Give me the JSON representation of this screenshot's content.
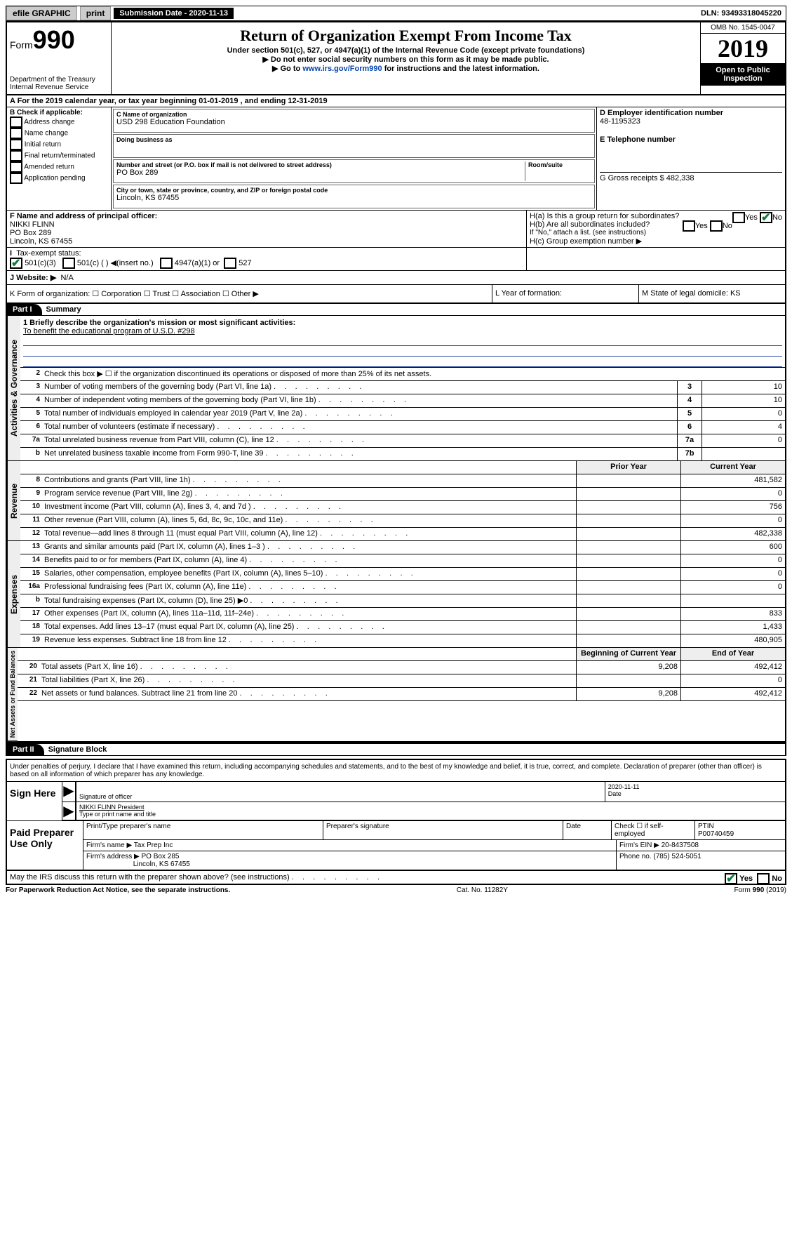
{
  "top_bar": {
    "efile": "efile GRAPHIC",
    "print": "print",
    "submission_date_label": "Submission Date - 2020-11-13",
    "dln": "DLN: 93493318045220"
  },
  "header": {
    "form_word": "Form",
    "form_num": "990",
    "dept": "Department of the Treasury\nInternal Revenue Service",
    "title": "Return of Organization Exempt From Income Tax",
    "sub1": "Under section 501(c), 527, or 4947(a)(1) of the Internal Revenue Code (except private foundations)",
    "sub2": "▶ Do not enter social security numbers on this form as it may be made public.",
    "sub3_pre": "▶ Go to ",
    "sub3_link": "www.irs.gov/Form990",
    "sub3_post": " for instructions and the latest information.",
    "omb": "OMB No. 1545-0047",
    "year": "2019",
    "open": "Open to Public Inspection"
  },
  "row_a": "A   For the 2019 calendar year, or tax year beginning 01-01-2019     , and ending 12-31-2019",
  "box_b": {
    "label": "B Check if applicable:",
    "opts": [
      "Address change",
      "Name change",
      "Initial return",
      "Final return/terminated",
      "Amended return",
      "Application pending"
    ]
  },
  "box_c": {
    "name_lbl": "C Name of organization",
    "name": "USD 298 Education Foundation",
    "dba_lbl": "Doing business as",
    "addr_lbl": "Number and street (or P.O. box if mail is not delivered to street address)",
    "room_lbl": "Room/suite",
    "addr": "PO Box 289",
    "city_lbl": "City or town, state or province, country, and ZIP or foreign postal code",
    "city": "Lincoln, KS  67455"
  },
  "box_d": {
    "ein_lbl": "D Employer identification number",
    "ein": "48-1195323",
    "tel_lbl": "E Telephone number",
    "gross_lbl": "G Gross receipts $ 482,338"
  },
  "box_f": {
    "lbl": "F  Name and address of principal officer:",
    "name": "NIKKI FLINN",
    "addr1": "PO Box 289",
    "addr2": "Lincoln, KS  67455"
  },
  "box_h": {
    "a": "H(a)  Is this a group return for subordinates?",
    "b": "H(b)  Are all subordinates included?",
    "b_note": "If \"No,\" attach a list. (see instructions)",
    "c": "H(c)  Group exemption number ▶",
    "yes": "Yes",
    "no": "No"
  },
  "tax_status": {
    "lbl": "Tax-exempt status:",
    "o1": "501(c)(3)",
    "o2": "501(c) (   ) ◀(insert no.)",
    "o3": "4947(a)(1) or",
    "o4": "527"
  },
  "website": {
    "lbl": "J   Website: ▶",
    "val": "N/A"
  },
  "row_k": {
    "k": "K Form of organization:    ☐ Corporation  ☐ Trust  ☐ Association  ☐ Other ▶",
    "l": "L Year of formation:",
    "m": "M State of legal domicile: KS"
  },
  "part1": {
    "tab": "Part I",
    "title": "Summary"
  },
  "summary": {
    "mission_lbl": "1  Briefly describe the organization's mission or most significant activities:",
    "mission": "To benefit the educational program of U.S.D. #298",
    "line2": "Check this box ▶ ☐  if the organization discontinued its operations or disposed of more than 25% of its net assets.",
    "lines": [
      {
        "n": "3",
        "d": "Number of voting members of the governing body (Part VI, line 1a)",
        "b": "3",
        "v": "10"
      },
      {
        "n": "4",
        "d": "Number of independent voting members of the governing body (Part VI, line 1b)",
        "b": "4",
        "v": "10"
      },
      {
        "n": "5",
        "d": "Total number of individuals employed in calendar year 2019 (Part V, line 2a)",
        "b": "5",
        "v": "0"
      },
      {
        "n": "6",
        "d": "Total number of volunteers (estimate if necessary)",
        "b": "6",
        "v": "4"
      },
      {
        "n": "7a",
        "d": "Total unrelated business revenue from Part VIII, column (C), line 12",
        "b": "7a",
        "v": "0"
      },
      {
        "n": "b",
        "d": "Net unrelated business taxable income from Form 990-T, line 39",
        "b": "7b",
        "v": ""
      }
    ],
    "col_prior": "Prior Year",
    "col_curr": "Current Year",
    "rev": [
      {
        "n": "8",
        "d": "Contributions and grants (Part VIII, line 1h)",
        "p": "",
        "c": "481,582"
      },
      {
        "n": "9",
        "d": "Program service revenue (Part VIII, line 2g)",
        "p": "",
        "c": "0"
      },
      {
        "n": "10",
        "d": "Investment income (Part VIII, column (A), lines 3, 4, and 7d )",
        "p": "",
        "c": "756"
      },
      {
        "n": "11",
        "d": "Other revenue (Part VIII, column (A), lines 5, 6d, 8c, 9c, 10c, and 11e)",
        "p": "",
        "c": "0"
      },
      {
        "n": "12",
        "d": "Total revenue—add lines 8 through 11 (must equal Part VIII, column (A), line 12)",
        "p": "",
        "c": "482,338"
      }
    ],
    "exp": [
      {
        "n": "13",
        "d": "Grants and similar amounts paid (Part IX, column (A), lines 1–3 )",
        "p": "",
        "c": "600"
      },
      {
        "n": "14",
        "d": "Benefits paid to or for members (Part IX, column (A), line 4)",
        "p": "",
        "c": "0"
      },
      {
        "n": "15",
        "d": "Salaries, other compensation, employee benefits (Part IX, column (A), lines 5–10)",
        "p": "",
        "c": "0"
      },
      {
        "n": "16a",
        "d": "Professional fundraising fees (Part IX, column (A), line 11e)",
        "p": "",
        "c": "0"
      },
      {
        "n": "b",
        "d": "Total fundraising expenses (Part IX, column (D), line 25) ▶0",
        "p": "shade",
        "c": "shade"
      },
      {
        "n": "17",
        "d": "Other expenses (Part IX, column (A), lines 11a–11d, 11f–24e)",
        "p": "",
        "c": "833"
      },
      {
        "n": "18",
        "d": "Total expenses. Add lines 13–17 (must equal Part IX, column (A), line 25)",
        "p": "",
        "c": "1,433"
      },
      {
        "n": "19",
        "d": "Revenue less expenses. Subtract line 18 from line 12",
        "p": "",
        "c": "480,905"
      }
    ],
    "col_beg": "Beginning of Current Year",
    "col_end": "End of Year",
    "net": [
      {
        "n": "20",
        "d": "Total assets (Part X, line 16)",
        "p": "9,208",
        "c": "492,412"
      },
      {
        "n": "21",
        "d": "Total liabilities (Part X, line 26)",
        "p": "",
        "c": "0"
      },
      {
        "n": "22",
        "d": "Net assets or fund balances. Subtract line 21 from line 20",
        "p": "9,208",
        "c": "492,412"
      }
    ]
  },
  "vlabels": {
    "gov": "Activities & Governance",
    "rev": "Revenue",
    "exp": "Expenses",
    "net": "Net Assets or Fund Balances"
  },
  "part2": {
    "tab": "Part II",
    "title": "Signature Block"
  },
  "sig": {
    "text": "Under penalties of perjury, I declare that I have examined this return, including accompanying schedules and statements, and to the best of my knowledge and belief, it is true, correct, and complete. Declaration of preparer (other than officer) is based on all information of which preparer has any knowledge.",
    "sign_here": "Sign Here",
    "sig_officer": "Signature of officer",
    "date": "Date",
    "date_val": "2020-11-11",
    "name": "NIKKI FLINN  President",
    "name_lbl": "Type or print name and title"
  },
  "prep": {
    "title": "Paid Preparer Use Only",
    "h1": "Print/Type preparer's name",
    "h2": "Preparer's signature",
    "h3": "Date",
    "h4": "Check ☐ if self-employed",
    "h5": "PTIN",
    "ptin": "P00740459",
    "firm_lbl": "Firm's name    ▶",
    "firm": "Tax Prep Inc",
    "ein_lbl": "Firm's EIN ▶",
    "ein": "20-8437508",
    "addr_lbl": "Firm's address ▶",
    "addr1": "PO Box 285",
    "addr2": "Lincoln, KS  67455",
    "phone_lbl": "Phone no.",
    "phone": "(785) 524-5051",
    "discuss": "May the IRS discuss this return with the preparer shown above? (see instructions)",
    "yes": "Yes",
    "no": "No"
  },
  "footer": {
    "l": "For Paperwork Reduction Act Notice, see the separate instructions.",
    "m": "Cat. No. 11282Y",
    "r": "Form 990 (2019)"
  }
}
